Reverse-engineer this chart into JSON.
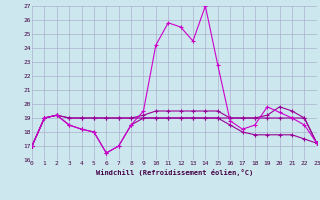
{
  "xlabel": "Windchill (Refroidissement éolien,°C)",
  "xlim": [
    0,
    23
  ],
  "ylim": [
    16,
    27
  ],
  "yticks": [
    16,
    17,
    18,
    19,
    20,
    21,
    22,
    23,
    24,
    25,
    26,
    27
  ],
  "xticks": [
    0,
    1,
    2,
    3,
    4,
    5,
    6,
    7,
    8,
    9,
    10,
    11,
    12,
    13,
    14,
    15,
    16,
    17,
    18,
    19,
    20,
    21,
    22,
    23
  ],
  "bg_color": "#cce8ee",
  "grid_color": "#aab0cc",
  "line_color1": "#990099",
  "line_color2": "#cc00cc",
  "series1_y": [
    17.0,
    19.0,
    19.2,
    18.5,
    18.2,
    18.0,
    16.5,
    17.0,
    18.5,
    19.5,
    24.2,
    25.8,
    25.5,
    24.5,
    27.0,
    22.8,
    18.8,
    18.2,
    18.5,
    19.8,
    19.4,
    19.0,
    18.5,
    17.2
  ],
  "series2_y": [
    17.0,
    19.0,
    19.2,
    19.0,
    19.0,
    19.0,
    19.0,
    19.0,
    19.0,
    19.2,
    19.5,
    19.5,
    19.5,
    19.5,
    19.5,
    19.5,
    19.0,
    19.0,
    19.0,
    19.2,
    19.8,
    19.5,
    19.0,
    17.2
  ],
  "series3_y": [
    17.0,
    19.0,
    19.2,
    18.5,
    18.2,
    18.0,
    16.5,
    17.0,
    18.5,
    19.0,
    19.0,
    19.0,
    19.0,
    19.0,
    19.0,
    19.0,
    18.5,
    18.0,
    17.8,
    17.8,
    17.8,
    17.8,
    17.5,
    17.2
  ],
  "series4_y": [
    17.0,
    19.0,
    19.2,
    19.0,
    19.0,
    19.0,
    19.0,
    19.0,
    19.0,
    19.0,
    19.0,
    19.0,
    19.0,
    19.0,
    19.0,
    19.0,
    19.0,
    19.0,
    19.0,
    19.0,
    19.0,
    19.0,
    19.0,
    17.2
  ]
}
